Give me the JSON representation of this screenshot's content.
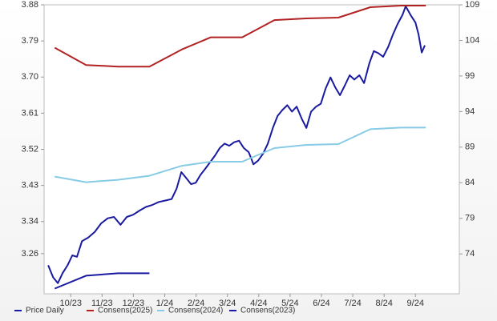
{
  "chart_data": {
    "type": "line",
    "xlim": [
      -0.85,
      12.4
    ],
    "xticks": [
      {
        "value": 0,
        "label": "10/23"
      },
      {
        "value": 1,
        "label": "11/23"
      },
      {
        "value": 2,
        "label": "12/23"
      },
      {
        "value": 3,
        "label": "1/24"
      },
      {
        "value": 4,
        "label": "2/24"
      },
      {
        "value": 5,
        "label": "3/24"
      },
      {
        "value": 6,
        "label": "4/24"
      },
      {
        "value": 7,
        "label": "5/24"
      },
      {
        "value": 8,
        "label": "6/24"
      },
      {
        "value": 9,
        "label": "7/24"
      },
      {
        "value": 10,
        "label": "8/24"
      },
      {
        "value": 11,
        "label": "9/24"
      }
    ],
    "ylim": [
      3.16,
      3.88
    ],
    "yticks": [
      3.26,
      3.34,
      3.43,
      3.52,
      3.61,
      {
        "value": 3.7,
        "label": "3.70"
      },
      3.79,
      3.88
    ],
    "y2lim": [
      68.4,
      109
    ],
    "y2ticks": [
      74,
      79,
      84,
      89,
      94,
      99,
      104,
      109
    ],
    "legend": "bottom",
    "series": [
      {
        "name": "Price Daily",
        "color": "#1a1aa0",
        "axis": "y2",
        "x": [
          -0.72,
          -0.56,
          -0.41,
          -0.26,
          -0.1,
          0.05,
          0.2,
          0.36,
          0.56,
          0.77,
          0.97,
          1.18,
          1.38,
          1.59,
          1.79,
          1.99,
          2.2,
          2.4,
          2.61,
          2.81,
          3.02,
          3.22,
          3.38,
          3.53,
          3.68,
          3.84,
          3.99,
          4.14,
          4.3,
          4.45,
          4.6,
          4.76,
          4.91,
          5.06,
          5.22,
          5.37,
          5.52,
          5.68,
          5.83,
          5.98,
          6.14,
          6.29,
          6.45,
          6.6,
          6.75,
          6.91,
          7.06,
          7.21,
          7.37,
          7.52,
          7.67,
          7.83,
          7.98,
          8.13,
          8.29,
          8.44,
          8.59,
          8.75,
          8.9,
          9.05,
          9.21,
          9.36,
          9.53,
          9.67,
          9.82,
          9.97,
          10.13,
          10.28,
          10.43,
          10.59,
          10.69,
          10.84,
          11.0,
          11.1,
          11.2,
          11.3
        ],
        "values": [
          72.4,
          70.7,
          69.9,
          71.3,
          72.4,
          73.8,
          73.6,
          75.8,
          76.3,
          77.1,
          78.3,
          79,
          79.2,
          78.1,
          79.2,
          79.5,
          80.1,
          80.6,
          80.9,
          81.3,
          81.5,
          81.7,
          83.2,
          85.5,
          84.7,
          83.8,
          84,
          85.1,
          86,
          86.9,
          87.8,
          88.9,
          89.5,
          89.2,
          89.7,
          89.9,
          88.9,
          88.3,
          86.6,
          87.1,
          88.1,
          89.5,
          91.7,
          93.4,
          94.2,
          94.9,
          94,
          94.7,
          93,
          91.7,
          94,
          94.7,
          95.1,
          97.2,
          98.8,
          97.4,
          96.3,
          97.7,
          99.1,
          98.5,
          99.1,
          98,
          100.8,
          102.5,
          102.2,
          101.7,
          103.1,
          104.8,
          106.3,
          107.6,
          108.8,
          107.6,
          106.5,
          104.8,
          102.3,
          103.3
        ]
      },
      {
        "name": "Consens(2025)",
        "color": "#b22222",
        "x": [
          -0.51,
          0.49,
          1.51,
          2.51,
          3.55,
          4.47,
          5.47,
          6.5,
          7.52,
          8.54,
          9.56,
          10.54,
          11.33
        ],
        "values": [
          3.773,
          3.73,
          3.726,
          3.726,
          3.769,
          3.799,
          3.799,
          3.842,
          3.846,
          3.848,
          3.874,
          3.878,
          3.878
        ]
      },
      {
        "name": "Consens(2024)",
        "color": "#87cbe6",
        "x": [
          -0.51,
          0.49,
          1.51,
          2.51,
          3.55,
          4.47,
          5.47,
          6.5,
          7.52,
          8.54,
          9.56,
          10.54,
          11.33
        ],
        "values": [
          3.452,
          3.438,
          3.444,
          3.454,
          3.479,
          3.489,
          3.489,
          3.523,
          3.531,
          3.533,
          3.57,
          3.574,
          3.574
        ]
      },
      {
        "name": "Consens(2023)",
        "color": "#1a1aa0",
        "x": [
          -0.51,
          0.49,
          1.51,
          2.51
        ],
        "values": [
          3.173,
          3.205,
          3.211,
          3.211
        ]
      }
    ]
  }
}
